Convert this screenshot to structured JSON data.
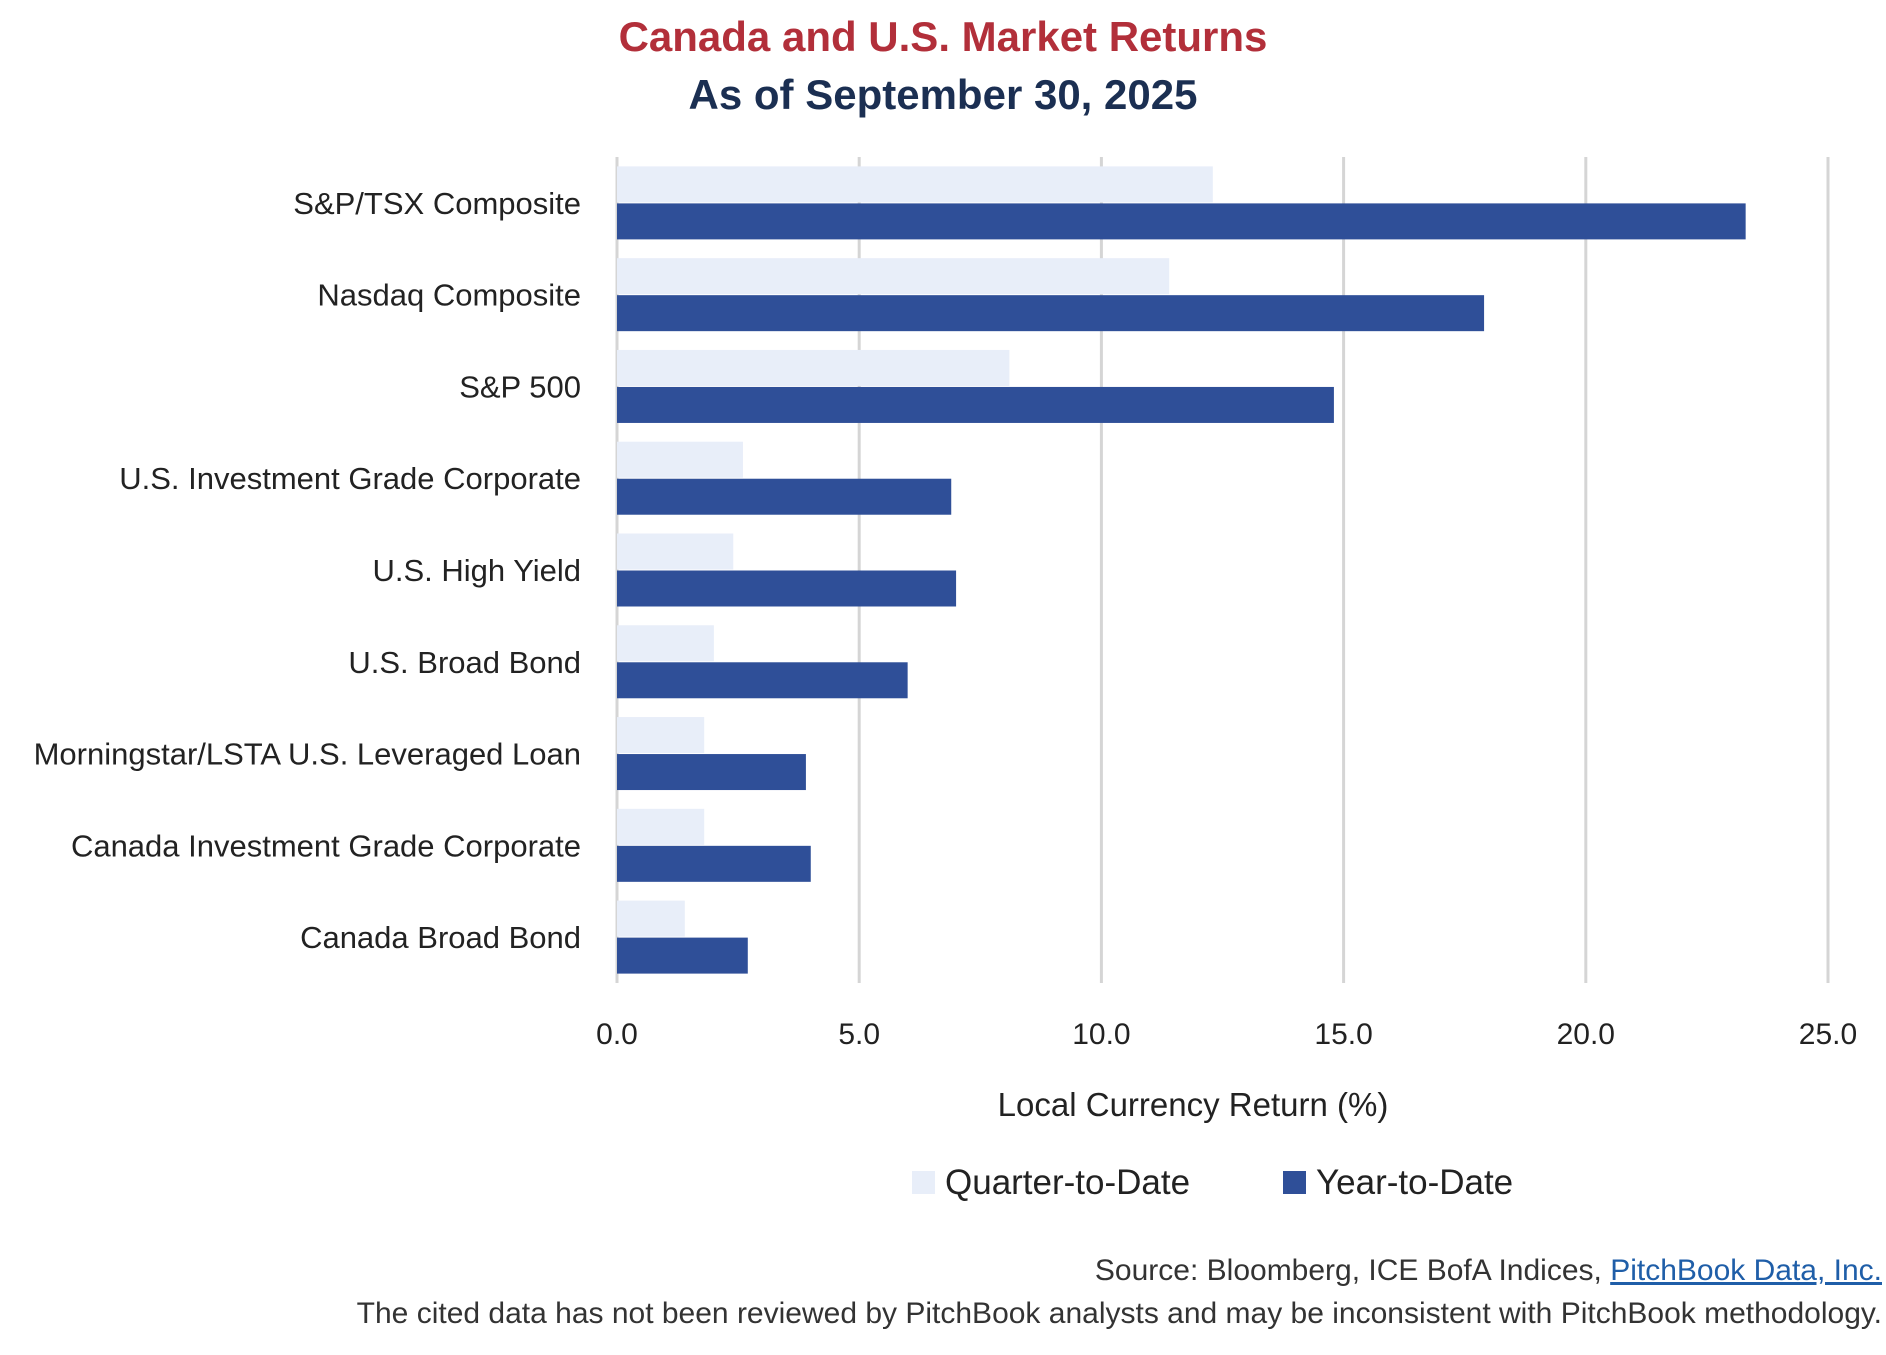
{
  "colors": {
    "qtd": "#e8eef9",
    "ytd": "#2f4f98",
    "title": "#b22f3a",
    "subtitle": "#1b2f52",
    "link": "#1f5ea8"
  },
  "footer": {
    "source_prefix": "Source: Bloomberg, ICE BofA Indices, ",
    "source_link": "PitchBook Data, Inc.",
    "disclaimer": "The cited data has not been reviewed by PitchBook analysts and may be inconsistent with PitchBook methodology."
  },
  "chart_data": {
    "type": "bar",
    "orientation": "horizontal",
    "title": "Canada and U.S. Market Returns",
    "subtitle": "As of September 30, 2025",
    "categories": [
      "S&P/TSX Composite",
      "Nasdaq Composite",
      "S&P 500",
      "U.S. Investment Grade Corporate",
      "U.S. High Yield",
      "U.S. Broad Bond",
      "Morningstar/LSTA U.S. Leveraged Loan",
      "Canada Investment Grade Corporate",
      "Canada Broad Bond"
    ],
    "series": [
      {
        "name": "Quarter-to-Date",
        "color": "#e8eef9",
        "values": [
          12.3,
          11.4,
          8.1,
          2.6,
          2.4,
          2.0,
          1.8,
          1.8,
          1.4
        ]
      },
      {
        "name": "Year-to-Date",
        "color": "#2f4f98",
        "values": [
          23.3,
          17.9,
          14.8,
          6.9,
          7.0,
          6.0,
          3.9,
          4.0,
          2.7
        ]
      }
    ],
    "xlabel": "Local Currency Return (%)",
    "xlim": [
      0,
      25
    ],
    "xticks": [
      "0.0",
      "5.0",
      "10.0",
      "15.0",
      "20.0",
      "25.0"
    ],
    "grid": true,
    "legend": "bottom"
  }
}
